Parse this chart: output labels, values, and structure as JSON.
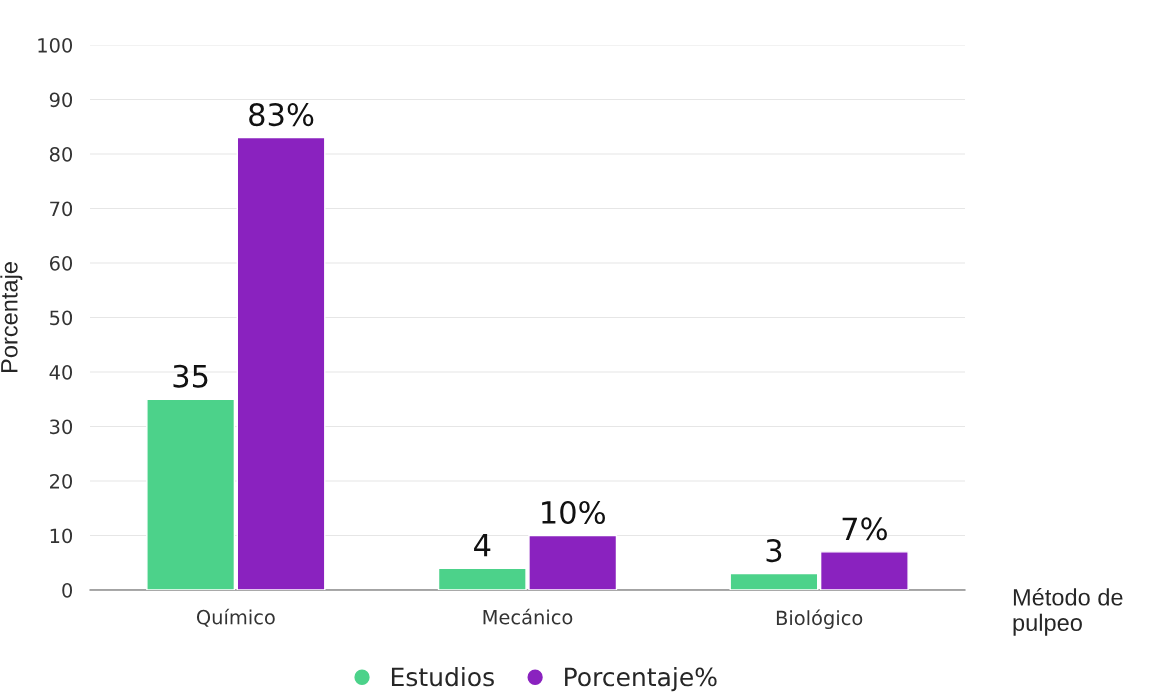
{
  "chart_data": {
    "type": "bar",
    "ylabel": "Porcentaje",
    "xlabel": "Método de\npulpeo",
    "categories": [
      "Químico",
      "Mecánico",
      "Biológico"
    ],
    "series": [
      {
        "name": "Estudios",
        "color": "#4cd28a",
        "values": [
          35,
          4,
          3
        ],
        "value_labels": [
          "35",
          "4",
          "3"
        ]
      },
      {
        "name": "Porcentaje%",
        "color": "#8a22bf",
        "values": [
          83,
          10,
          7
        ],
        "value_labels": [
          "83%",
          "10%",
          "7%"
        ]
      }
    ],
    "ylim": [
      0,
      100
    ],
    "yticks": [
      0,
      10,
      20,
      30,
      40,
      50,
      60,
      70,
      80,
      90,
      100
    ],
    "grid": "y",
    "legend": "bottom",
    "marker": "circle"
  }
}
